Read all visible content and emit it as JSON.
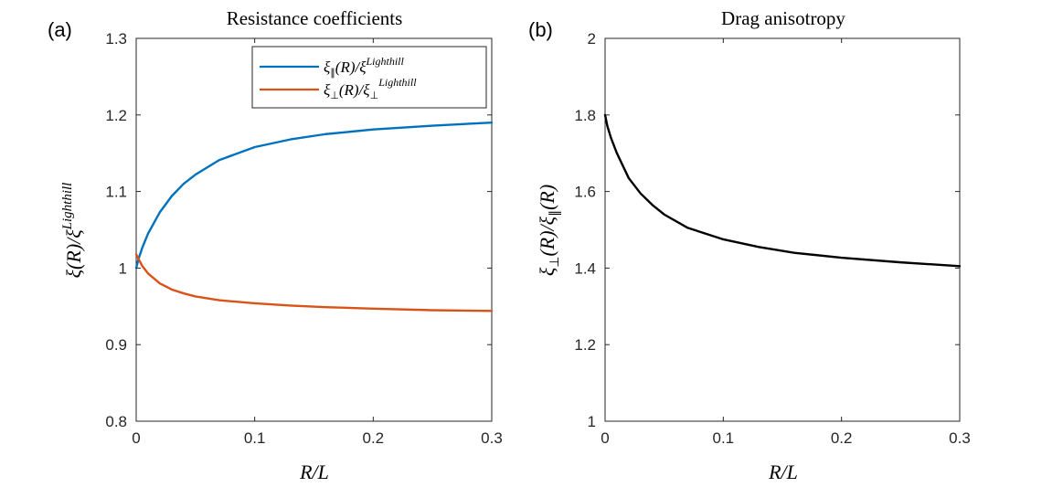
{
  "chart_data": [
    {
      "id": "a",
      "type": "line",
      "panel_label": "(a)",
      "title": "Resistance coefficients",
      "xlabel": "R/L",
      "ylabel": "ξ(R)/ξ^Lighthill",
      "xlim": [
        0,
        0.3
      ],
      "ylim": [
        0.8,
        1.3
      ],
      "xticks": [
        0,
        0.1,
        0.2,
        0.3
      ],
      "xticklabels": [
        "0",
        "0.1",
        "0.2",
        "0.3"
      ],
      "yticks": [
        0.8,
        0.9,
        1.0,
        1.1,
        1.2,
        1.3
      ],
      "yticklabels": [
        "0.8",
        "0.9",
        "1",
        "1.1",
        "1.2",
        "1.3"
      ],
      "legend_position": "top-right",
      "series": [
        {
          "name": "ξ∥(R)/ξ^Lighthill",
          "color": "#0072BD",
          "x": [
            0.0,
            0.002,
            0.005,
            0.01,
            0.02,
            0.03,
            0.04,
            0.05,
            0.07,
            0.1,
            0.13,
            0.16,
            0.2,
            0.25,
            0.3
          ],
          "y": [
            1.0,
            1.012,
            1.026,
            1.045,
            1.073,
            1.094,
            1.11,
            1.122,
            1.141,
            1.158,
            1.168,
            1.175,
            1.181,
            1.186,
            1.19
          ]
        },
        {
          "name": "ξ⊥(R)/ξ⊥^Lighthill",
          "color": "#D95319",
          "x": [
            0.0,
            0.002,
            0.005,
            0.01,
            0.02,
            0.03,
            0.04,
            0.05,
            0.07,
            0.1,
            0.13,
            0.16,
            0.2,
            0.25,
            0.3
          ],
          "y": [
            1.018,
            1.012,
            1.003,
            0.993,
            0.98,
            0.972,
            0.967,
            0.963,
            0.958,
            0.954,
            0.951,
            0.949,
            0.947,
            0.945,
            0.944
          ]
        }
      ]
    },
    {
      "id": "b",
      "type": "line",
      "panel_label": "(b)",
      "title": "Drag anisotropy",
      "xlabel": "R/L",
      "ylabel": "ξ⊥(R)/ξ∥(R)",
      "xlim": [
        0,
        0.3
      ],
      "ylim": [
        1,
        2
      ],
      "xticks": [
        0,
        0.1,
        0.2,
        0.3
      ],
      "xticklabels": [
        "0",
        "0.1",
        "0.2",
        "0.3"
      ],
      "yticks": [
        1.0,
        1.2,
        1.4,
        1.6,
        1.8,
        2.0
      ],
      "yticklabels": [
        "1",
        "1.2",
        "1.4",
        "1.6",
        "1.8",
        "2"
      ],
      "series": [
        {
          "name": "anisotropy",
          "color": "#000000",
          "x": [
            0.0,
            0.002,
            0.005,
            0.01,
            0.02,
            0.03,
            0.04,
            0.05,
            0.07,
            0.1,
            0.13,
            0.16,
            0.2,
            0.25,
            0.3
          ],
          "y": [
            1.8,
            1.77,
            1.74,
            1.7,
            1.635,
            1.595,
            1.565,
            1.54,
            1.505,
            1.475,
            1.455,
            1.44,
            1.427,
            1.415,
            1.405
          ]
        }
      ]
    }
  ]
}
